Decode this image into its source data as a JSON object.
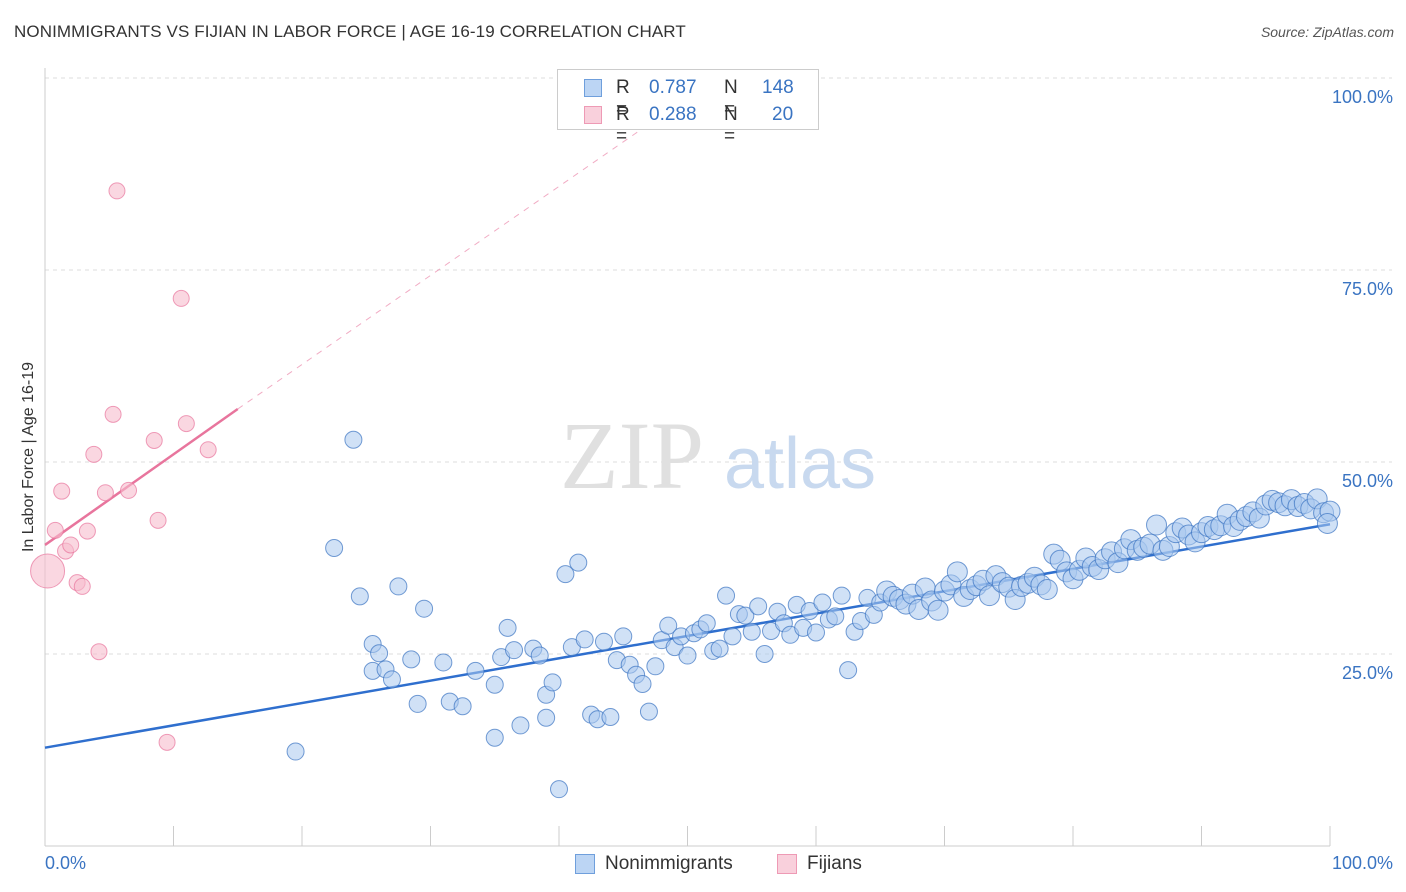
{
  "title": "NONIMMIGRANTS VS FIJIAN IN LABOR FORCE | AGE 16-19 CORRELATION CHART",
  "source": "Source: ZipAtlas.com",
  "watermark": {
    "zip": "ZIP",
    "atlas": "atlas"
  },
  "colors": {
    "blue": "#3a74c2",
    "blue_fill": "#a9c8ef",
    "blue_line": "#2f6fce",
    "pink": "#e8759d",
    "pink_fill": "#f6bccd",
    "grid": "#dddddd",
    "tick_label": "#3a74c2"
  },
  "legend": {
    "rows": [
      {
        "r_label": "R =",
        "r_value": "0.787",
        "n_label": "N =",
        "n_value": "148"
      },
      {
        "r_label": "R =",
        "r_value": "0.288",
        "n_label": "N =",
        "n_value": "20"
      }
    ]
  },
  "bottom_legend": {
    "series1": "Nonimmigrants",
    "series2": "Fijians"
  },
  "chart_data": {
    "type": "scatter",
    "title": "NONIMMIGRANTS VS FIJIAN IN LABOR FORCE | AGE 16-19 CORRELATION CHART",
    "xlabel": "",
    "ylabel": "In Labor Force | Age 16-19",
    "xlim": [
      0,
      100
    ],
    "ylim": [
      0,
      100
    ],
    "x_tick_labels": [
      "0.0%",
      "100.0%"
    ],
    "y_tick_labels": [
      "25.0%",
      "50.0%",
      "75.0%",
      "100.0%"
    ],
    "y_ticks": [
      25,
      50,
      75,
      100
    ],
    "grid": true,
    "legend_position": "top-center",
    "series": [
      {
        "name": "Nonimmigrants",
        "R": 0.787,
        "N": 148,
        "trend": {
          "x": [
            0,
            100
          ],
          "y": [
            12.8,
            41.9
          ]
        },
        "points": [
          [
            19.5,
            12.3
          ],
          [
            24.5,
            32.5
          ],
          [
            22.5,
            38.8
          ],
          [
            24.0,
            52.9
          ],
          [
            25.5,
            22.8
          ],
          [
            25.5,
            26.3
          ],
          [
            26.0,
            25.1
          ],
          [
            26.5,
            23.0
          ],
          [
            27.0,
            21.7
          ],
          [
            27.5,
            33.8
          ],
          [
            28.5,
            24.3
          ],
          [
            29.0,
            18.5
          ],
          [
            29.5,
            30.9
          ],
          [
            31.0,
            23.9
          ],
          [
            31.5,
            18.8
          ],
          [
            32.5,
            18.2
          ],
          [
            33.5,
            22.8
          ],
          [
            35.5,
            24.6
          ],
          [
            35.0,
            21.0
          ],
          [
            35.0,
            14.1
          ],
          [
            36.0,
            28.4
          ],
          [
            36.5,
            25.5
          ],
          [
            37.0,
            15.7
          ],
          [
            38.0,
            25.7
          ],
          [
            38.5,
            24.8
          ],
          [
            39.0,
            19.7
          ],
          [
            39.0,
            16.7
          ],
          [
            39.5,
            21.3
          ],
          [
            40.0,
            7.4
          ],
          [
            40.5,
            35.4
          ],
          [
            41.0,
            25.9
          ],
          [
            41.5,
            36.9
          ],
          [
            42.0,
            26.9
          ],
          [
            42.5,
            17.1
          ],
          [
            43.0,
            16.5
          ],
          [
            43.5,
            26.6
          ],
          [
            44.0,
            16.8
          ],
          [
            44.5,
            24.2
          ],
          [
            45.0,
            27.3
          ],
          [
            45.5,
            23.6
          ],
          [
            46.0,
            22.3
          ],
          [
            46.5,
            21.1
          ],
          [
            47.0,
            17.5
          ],
          [
            47.5,
            23.4
          ],
          [
            48.0,
            26.8
          ],
          [
            48.5,
            28.7
          ],
          [
            49.0,
            25.9
          ],
          [
            49.5,
            27.3
          ],
          [
            50.0,
            24.8
          ],
          [
            50.5,
            27.7
          ],
          [
            51.0,
            28.2
          ],
          [
            51.5,
            29.0
          ],
          [
            52.0,
            25.4
          ],
          [
            52.5,
            25.7
          ],
          [
            53.0,
            32.6
          ],
          [
            53.5,
            27.3
          ],
          [
            54.0,
            30.2
          ],
          [
            54.5,
            30.0
          ],
          [
            55.0,
            27.9
          ],
          [
            55.5,
            31.2
          ],
          [
            56.0,
            25.0
          ],
          [
            56.5,
            28.0
          ],
          [
            57.0,
            30.5
          ],
          [
            57.5,
            29.0
          ],
          [
            58.0,
            27.5
          ],
          [
            58.5,
            31.4
          ],
          [
            59.0,
            28.4
          ],
          [
            59.5,
            30.6
          ],
          [
            60.0,
            27.8
          ],
          [
            60.5,
            31.7
          ],
          [
            61.0,
            29.5
          ],
          [
            61.5,
            29.9
          ],
          [
            62.0,
            32.6
          ],
          [
            62.5,
            22.9
          ],
          [
            63.0,
            27.9
          ],
          [
            63.5,
            29.3
          ],
          [
            64.0,
            32.3
          ],
          [
            64.5,
            30.1
          ],
          [
            65.0,
            31.7
          ],
          [
            65.5,
            33.2
          ],
          [
            66.0,
            32.5
          ],
          [
            66.5,
            32.1
          ],
          [
            67.0,
            31.5
          ],
          [
            67.5,
            32.8
          ],
          [
            68.0,
            30.8
          ],
          [
            68.5,
            33.6
          ],
          [
            69.0,
            31.9
          ],
          [
            69.5,
            30.7
          ],
          [
            70.0,
            33.2
          ],
          [
            70.5,
            34.0
          ],
          [
            71.0,
            35.7
          ],
          [
            71.5,
            32.5
          ],
          [
            72.0,
            33.4
          ],
          [
            72.5,
            33.9
          ],
          [
            73.0,
            34.6
          ],
          [
            73.5,
            32.6
          ],
          [
            74.0,
            35.2
          ],
          [
            74.5,
            34.3
          ],
          [
            75.0,
            33.7
          ],
          [
            75.5,
            32.1
          ],
          [
            76.0,
            33.8
          ],
          [
            76.5,
            34.2
          ],
          [
            77.0,
            35.0
          ],
          [
            77.5,
            34.0
          ],
          [
            78.0,
            33.4
          ],
          [
            78.5,
            38.0
          ],
          [
            79.0,
            37.2
          ],
          [
            79.5,
            35.7
          ],
          [
            80.0,
            34.8
          ],
          [
            80.5,
            35.9
          ],
          [
            81.0,
            37.5
          ],
          [
            81.5,
            36.4
          ],
          [
            82.0,
            36.0
          ],
          [
            82.5,
            37.4
          ],
          [
            83.0,
            38.3
          ],
          [
            83.5,
            36.9
          ],
          [
            84.0,
            38.7
          ],
          [
            84.5,
            39.9
          ],
          [
            85.0,
            38.5
          ],
          [
            85.5,
            38.9
          ],
          [
            86.0,
            39.3
          ],
          [
            86.5,
            41.8
          ],
          [
            87.0,
            38.5
          ],
          [
            87.5,
            39.0
          ],
          [
            88.0,
            40.8
          ],
          [
            88.5,
            41.4
          ],
          [
            89.0,
            40.5
          ],
          [
            89.5,
            39.6
          ],
          [
            90.0,
            40.8
          ],
          [
            90.5,
            41.6
          ],
          [
            91.0,
            41.2
          ],
          [
            91.5,
            41.7
          ],
          [
            92.0,
            43.2
          ],
          [
            92.5,
            41.6
          ],
          [
            93.0,
            42.4
          ],
          [
            93.5,
            42.9
          ],
          [
            94.0,
            43.5
          ],
          [
            94.5,
            42.7
          ],
          [
            95.0,
            44.4
          ],
          [
            95.5,
            45.0
          ],
          [
            96.0,
            44.7
          ],
          [
            96.5,
            44.3
          ],
          [
            97.0,
            45.1
          ],
          [
            97.5,
            44.2
          ],
          [
            98.0,
            44.6
          ],
          [
            98.5,
            43.9
          ],
          [
            99.0,
            45.2
          ],
          [
            99.5,
            43.4
          ],
          [
            100.0,
            43.6
          ],
          [
            99.8,
            42.0
          ]
        ]
      },
      {
        "name": "Fijians",
        "R": 0.288,
        "N": 20,
        "trend": {
          "x": [
            0,
            15
          ],
          "y": [
            39.2,
            56.9
          ],
          "dashed_to": [
            47,
            94
          ]
        },
        "points": [
          [
            0.2,
            35.8
          ],
          [
            0.8,
            41.1
          ],
          [
            1.3,
            46.2
          ],
          [
            1.6,
            38.4
          ],
          [
            2.0,
            39.2
          ],
          [
            2.5,
            34.3
          ],
          [
            2.9,
            33.8
          ],
          [
            3.3,
            41.0
          ],
          [
            3.8,
            51.0
          ],
          [
            4.2,
            25.3
          ],
          [
            4.7,
            46.0
          ],
          [
            5.3,
            56.2
          ],
          [
            5.6,
            85.3
          ],
          [
            6.5,
            46.3
          ],
          [
            8.5,
            52.8
          ],
          [
            8.8,
            42.4
          ],
          [
            9.5,
            13.5
          ],
          [
            10.6,
            71.3
          ],
          [
            11.0,
            55.0
          ],
          [
            12.7,
            51.6
          ]
        ]
      }
    ]
  }
}
